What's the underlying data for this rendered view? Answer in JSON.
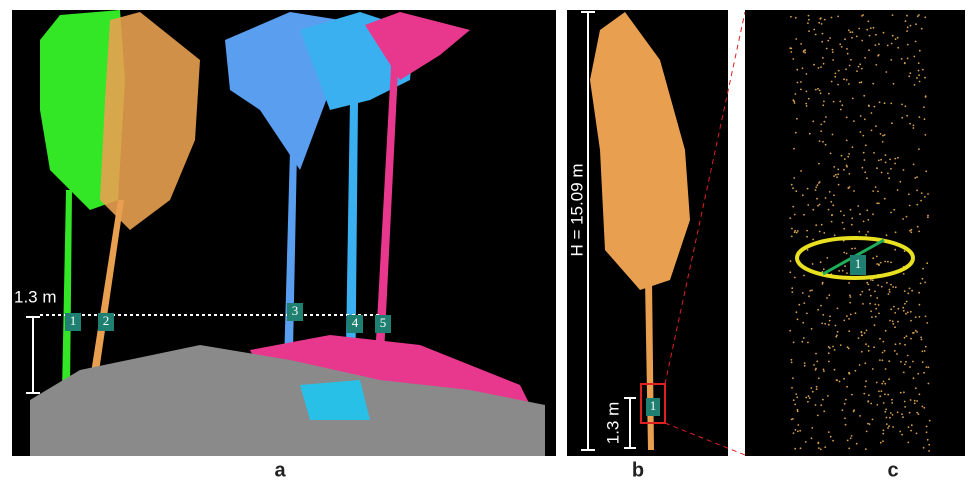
{
  "panel_a": {
    "label": "a",
    "height_label": "1.3 m",
    "tree_ids": [
      "1",
      "2",
      "3",
      "4",
      "5"
    ]
  },
  "panel_b": {
    "label": "b",
    "height_label": "H = 15.09 m",
    "breast_height_label": "1.3 m",
    "tree_id": "1"
  },
  "panel_c": {
    "label": "c",
    "tree_id": "1"
  }
}
